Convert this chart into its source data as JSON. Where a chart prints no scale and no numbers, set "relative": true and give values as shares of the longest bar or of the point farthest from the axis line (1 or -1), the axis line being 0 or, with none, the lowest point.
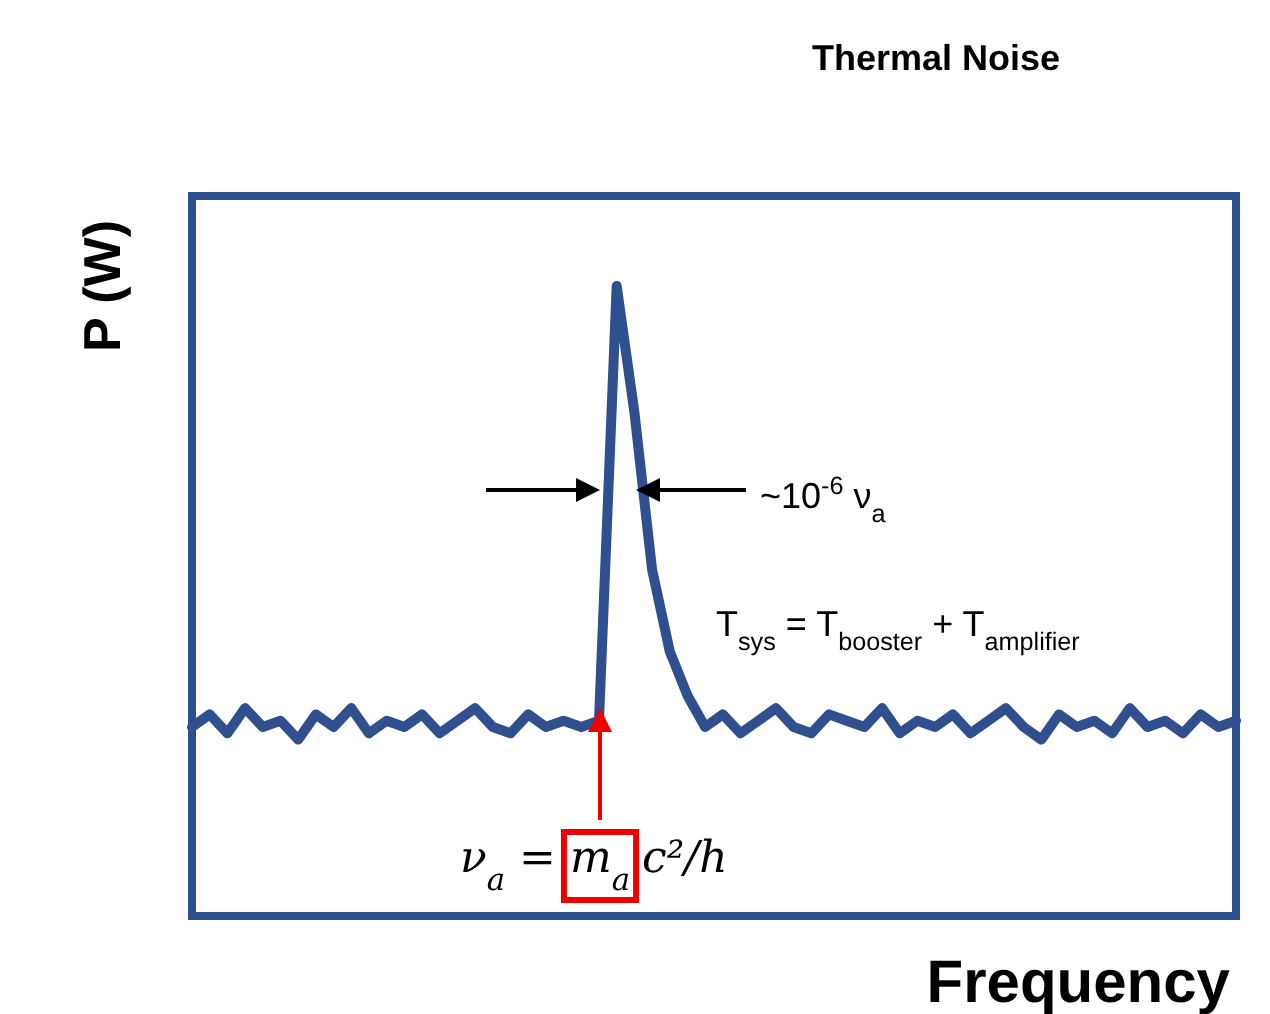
{
  "chart_data": {
    "type": "line",
    "relative": true,
    "title": "Thermal Noise",
    "xlabel": "Frequency",
    "ylabel": "P (W)",
    "categories": [
      null,
      null,
      null,
      null,
      null,
      null,
      null,
      null,
      null,
      null,
      null,
      null,
      null,
      null,
      null,
      null,
      null,
      null,
      null,
      null,
      null,
      null,
      null,
      null,
      null,
      null,
      null,
      null,
      null,
      null,
      null,
      null,
      null,
      null,
      null,
      null,
      null,
      null,
      null,
      null,
      null,
      null,
      null,
      null,
      null,
      null,
      null,
      null,
      null,
      null,
      null,
      null,
      null,
      null,
      null,
      null,
      null,
      null,
      null,
      null
    ],
    "series": [
      {
        "color": "#2f4f8f",
        "values": [
          0.3,
          0.32,
          0.29,
          0.33,
          0.3,
          0.31,
          0.28,
          0.32,
          0.3,
          0.33,
          0.29,
          0.31,
          0.3,
          0.32,
          0.29,
          0.31,
          0.33,
          0.3,
          0.29,
          0.32,
          0.3,
          0.31,
          0.3,
          0.31,
          1,
          0.8,
          0.55,
          0.42,
          0.35,
          0.3,
          0.32,
          0.29,
          0.31,
          0.33,
          0.3,
          0.29,
          0.32,
          0.31,
          0.3,
          0.33,
          0.29,
          0.31,
          0.3,
          0.32,
          0.29,
          0.31,
          0.33,
          0.3,
          0.28,
          0.32,
          0.3,
          0.31,
          0.29,
          0.33,
          0.3,
          0.31,
          0.29,
          0.32,
          0.3,
          0.31
        ]
      }
    ],
    "annotations": [
      "~10$^{-6}$ ν$_{a}$",
      "T$_{sys}$ = T$_{booster}$ + T$_{amplifier}$",
      "ν$_{a}$ = m$_{a}$c²/h"
    ],
    "marker": "none",
    "line_style": "solid"
  }
}
